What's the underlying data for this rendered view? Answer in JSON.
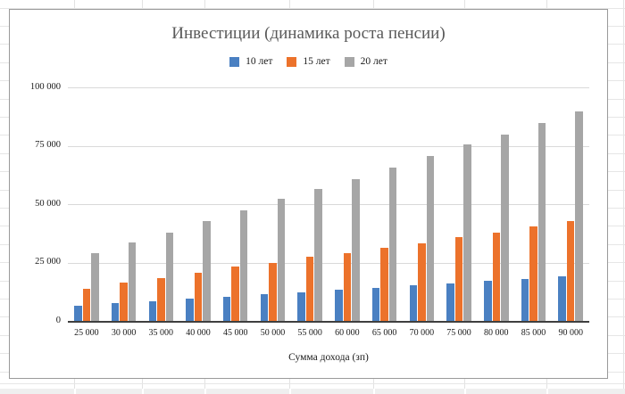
{
  "chart_data": {
    "type": "bar",
    "title": "Инвестиции (динамика роста пенсии)",
    "xlabel": "Сумма дохода (зп)",
    "ylabel": "",
    "categories": [
      "25 000",
      "30 000",
      "35 000",
      "40 000",
      "45 000",
      "50 000",
      "55 000",
      "60 000",
      "65 000",
      "70 000",
      "75 000",
      "80 000",
      "85 000",
      "90 000"
    ],
    "series": [
      {
        "name": "10 лет",
        "color": "#4A80C2",
        "values": [
          6600,
          7500,
          8500,
          9500,
          10500,
          11400,
          12400,
          13300,
          14200,
          15100,
          16000,
          17000,
          17900,
          18900
        ]
      },
      {
        "name": "15 лет",
        "color": "#EC722B",
        "values": [
          13900,
          16300,
          18200,
          20500,
          23200,
          25000,
          27300,
          29000,
          31400,
          33400,
          35700,
          37900,
          40300,
          42800
        ]
      },
      {
        "name": "20 лет",
        "color": "#A6A6A6",
        "values": [
          28900,
          33600,
          37900,
          42700,
          47200,
          52200,
          56600,
          60800,
          65500,
          70600,
          75400,
          79800,
          84700,
          89800
        ]
      }
    ],
    "ylim": [
      0,
      100000
    ],
    "yticks": [
      {
        "value": 0,
        "label": "0"
      },
      {
        "value": 25000,
        "label": "25 000"
      },
      {
        "value": 50000,
        "label": "50 000"
      },
      {
        "value": 75000,
        "label": "75 000"
      },
      {
        "value": 100000,
        "label": "100 000"
      }
    ],
    "grid": "horizontal",
    "legend_position": "top",
    "colors": {
      "title_text": "#595959",
      "gridline": "#d9d9d9",
      "axis_line": "#3f3f3f",
      "chart_border": "#9a9a9a"
    }
  }
}
